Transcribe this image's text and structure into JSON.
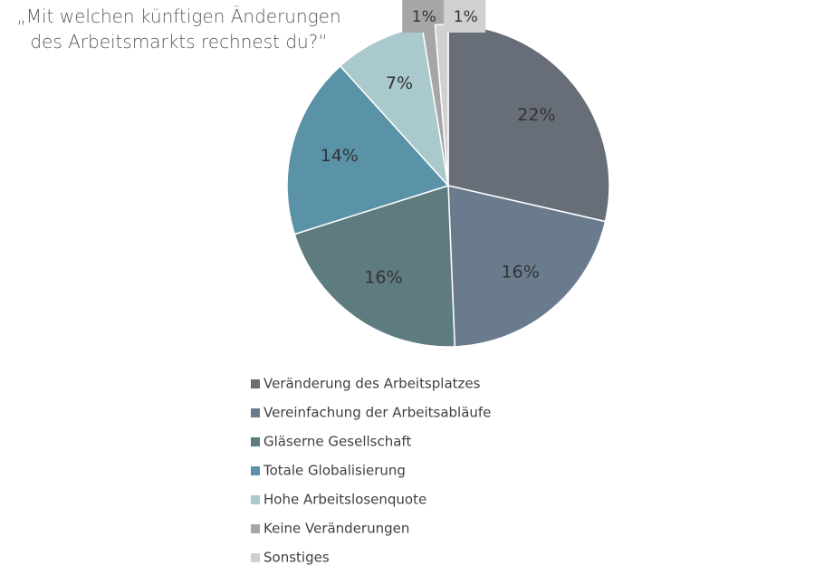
{
  "chart_data": {
    "type": "pie",
    "title": "„Mit welchen künftigen Änderungen des Arbeitsmarkts rechnest du?“",
    "categories": [
      "Veränderung des Arbeitsplatzes",
      "Vereinfachung der Arbeitsabläufe",
      "Gläserne Gesellschaft",
      "Totale Globalisierung",
      "Hohe Arbeitslosenquote",
      "Keine Veränderungen",
      "Sonstiges"
    ],
    "values": [
      22,
      16,
      16,
      14,
      7,
      1,
      1
    ],
    "value_labels": [
      "22%",
      "16%",
      "16%",
      "14%",
      "7%",
      "1%",
      "1%"
    ],
    "colors": [
      "#676e78",
      "#6a7b8e",
      "#5e7b80",
      "#5a93a8",
      "#a9c9cc",
      "#a6a6a6",
      "#d0d0d0"
    ],
    "legend": "bottom"
  }
}
